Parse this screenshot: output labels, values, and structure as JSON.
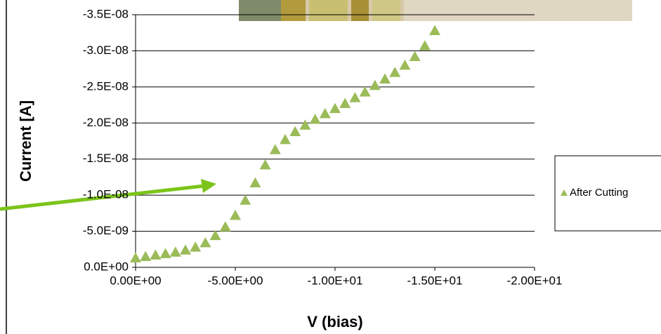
{
  "chart_data": {
    "type": "scatter",
    "y_label": "Current  [A]",
    "x_label": "V (bias)",
    "legend": "right",
    "grid": true,
    "series": [
      {
        "name": "After Cutting",
        "color": "#9bbb59",
        "marker": "triangle",
        "x": [
          0,
          -0.5,
          -1,
          -1.5,
          -2,
          -2.5,
          -3,
          -3.5,
          -4,
          -4.5,
          -5,
          -5.5,
          -6,
          -6.5,
          -7,
          -7.5,
          -8,
          -8.5,
          -9,
          -9.5,
          -10,
          -10.5,
          -11,
          -11.5,
          -12,
          -12.5,
          -13,
          -13.5,
          -14,
          -14.5,
          -15
        ],
        "values": [
          -1.3e-09,
          -1.5e-09,
          -1.7e-09,
          -1.9e-09,
          -2.1e-09,
          -2.4e-09,
          -2.8e-09,
          -3.4e-09,
          -4.4e-09,
          -5.6e-09,
          -7.2e-09,
          -9.3e-09,
          -1.17e-08,
          -1.42e-08,
          -1.63e-08,
          -1.77e-08,
          -1.88e-08,
          -1.97e-08,
          -2.05e-08,
          -2.13e-08,
          -2.2e-08,
          -2.27e-08,
          -2.35e-08,
          -2.43e-08,
          -2.52e-08,
          -2.61e-08,
          -2.7e-08,
          -2.8e-08,
          -2.92e-08,
          -3.07e-08,
          -3.28e-08
        ]
      }
    ],
    "xlim": [
      0,
      -20
    ],
    "xticks": [
      {
        "value": 0,
        "label": "0.00E+00"
      },
      {
        "value": -5,
        "label": "-5.00E+00"
      },
      {
        "value": -10,
        "label": "-1.00E+01"
      },
      {
        "value": -15,
        "label": "-1.50E+01"
      },
      {
        "value": -20,
        "label": "-2.00E+01"
      }
    ],
    "ylim": [
      0,
      -3.5e-08
    ],
    "yticks": [
      {
        "value": 0,
        "label": "0.0E+00"
      },
      {
        "value": -5e-09,
        "label": "-5.0E-09"
      },
      {
        "value": -1e-08,
        "label": "-1.0E-08"
      },
      {
        "value": -1.5e-08,
        "label": "-1.5E-08"
      },
      {
        "value": -2e-08,
        "label": "-2.0E-08"
      },
      {
        "value": -2.5e-08,
        "label": "-2.5E-08"
      },
      {
        "value": -3e-08,
        "label": "-3.0E-08"
      },
      {
        "value": -3.5e-08,
        "label": "-3.5E-08"
      }
    ]
  }
}
